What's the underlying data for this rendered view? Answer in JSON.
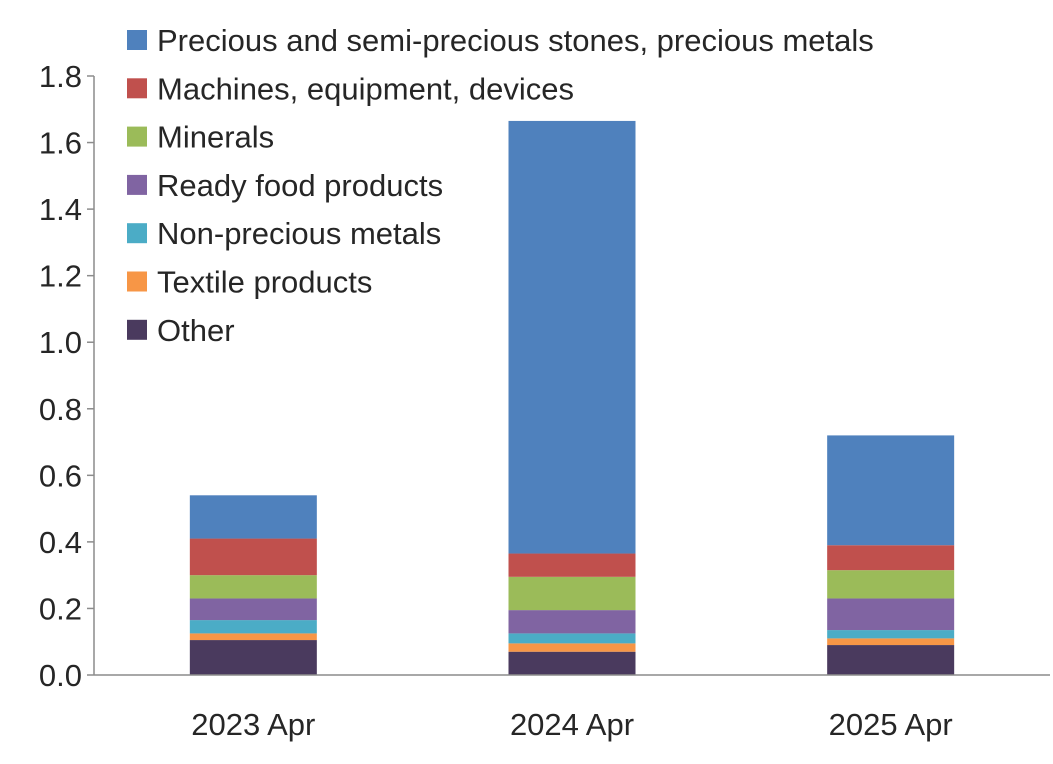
{
  "chart_data": {
    "type": "bar",
    "stacked": true,
    "title": "",
    "xlabel": "",
    "ylabel": "",
    "categories": [
      "2023 Apr",
      "2024 Apr",
      "2025 Apr"
    ],
    "ylim": [
      0,
      1.8
    ],
    "yticks": [
      "0.0",
      "0.2",
      "0.4",
      "0.6",
      "0.8",
      "1.0",
      "1.2",
      "1.4",
      "1.6",
      "1.8"
    ],
    "grid": false,
    "legend_position": "top-left",
    "series": [
      {
        "name": "Other",
        "color": "#4A3A5E",
        "values": [
          0.105,
          0.07,
          0.09
        ]
      },
      {
        "name": "Textile products",
        "color": "#F79646",
        "values": [
          0.02,
          0.025,
          0.02
        ]
      },
      {
        "name": "Non-precious metals",
        "color": "#4BACC6",
        "values": [
          0.04,
          0.03,
          0.025
        ]
      },
      {
        "name": "Ready food products",
        "color": "#8064A2",
        "values": [
          0.065,
          0.07,
          0.095
        ]
      },
      {
        "name": "Minerals",
        "color": "#9BBB59",
        "values": [
          0.07,
          0.1,
          0.085
        ]
      },
      {
        "name": "Machines, equipment, devices",
        "color": "#C0504D",
        "values": [
          0.11,
          0.07,
          0.075
        ]
      },
      {
        "name": "Precious and semi-precious stones, precious metals",
        "color": "#4F81BD",
        "values": [
          0.13,
          1.3,
          0.33
        ]
      }
    ]
  }
}
